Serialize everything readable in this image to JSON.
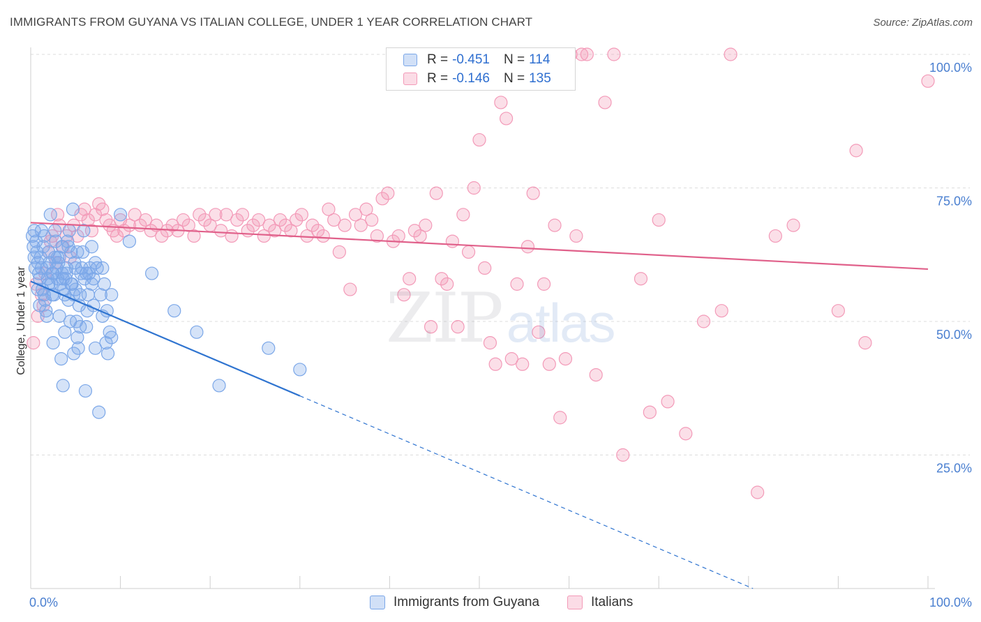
{
  "header": {
    "title": "IMMIGRANTS FROM GUYANA VS ITALIAN COLLEGE, UNDER 1 YEAR CORRELATION CHART",
    "source": "Source: ZipAtlas.com"
  },
  "watermark": {
    "zip": "ZIP",
    "atlas": "atlas"
  },
  "legend": {
    "rows": [
      {
        "r_label": "R =",
        "r_value": "-0.451",
        "n_label": "N =",
        "n_value": "114",
        "color": "#7ba7e8"
      },
      {
        "r_label": "R =",
        "r_value": "-0.146",
        "n_label": "N =",
        "n_value": "135",
        "color": "#f39ab8"
      }
    ]
  },
  "bottom_legend": {
    "items": [
      {
        "label": "Immigrants from Guyana",
        "color": "#7ba7e8"
      },
      {
        "label": "Italians",
        "color": "#f39ab8"
      }
    ]
  },
  "chart_data": {
    "type": "scatter",
    "title": "IMMIGRANTS FROM GUYANA VS ITALIAN COLLEGE, UNDER 1 YEAR CORRELATION CHART",
    "xlabel": "",
    "ylabel": "College, Under 1 year",
    "xlim": [
      0,
      100
    ],
    "ylim": [
      0,
      100
    ],
    "x_tick_labels": [
      "0.0%",
      "100.0%"
    ],
    "y_ticks": [
      {
        "value": 25,
        "label": "25.0%"
      },
      {
        "value": 50,
        "label": "50.0%"
      },
      {
        "value": 75,
        "label": "75.0%"
      },
      {
        "value": 100,
        "label": "100.0%"
      }
    ],
    "grid": true,
    "legend_position": "top-center",
    "series": [
      {
        "name": "Immigrants from Guyana",
        "color": "#7ba7e8",
        "line_color": "#2f74d0",
        "R": -0.451,
        "N": 114,
        "trend": {
          "x0": 0,
          "y0": 57.5,
          "x_solid_end": 30,
          "x1": 80.5,
          "y1": 0
        },
        "points": [
          [
            0.2,
            66
          ],
          [
            0.3,
            64
          ],
          [
            0.4,
            62
          ],
          [
            0.5,
            60
          ],
          [
            0.6,
            65
          ],
          [
            0.7,
            63
          ],
          [
            0.8,
            61
          ],
          [
            0.9,
            59
          ],
          [
            1.0,
            58
          ],
          [
            1.1,
            62
          ],
          [
            1.2,
            60
          ],
          [
            1.3,
            56
          ],
          [
            1.4,
            64
          ],
          [
            1.5,
            66
          ],
          [
            1.6,
            54
          ],
          [
            1.7,
            52
          ],
          [
            1.8,
            60
          ],
          [
            1.9,
            58
          ],
          [
            2.0,
            63
          ],
          [
            2.1,
            61
          ],
          [
            2.2,
            70
          ],
          [
            2.3,
            57
          ],
          [
            2.4,
            59
          ],
          [
            2.5,
            46
          ],
          [
            2.6,
            55
          ],
          [
            2.7,
            62
          ],
          [
            2.8,
            65
          ],
          [
            2.9,
            60
          ],
          [
            3.0,
            58
          ],
          [
            3.1,
            61
          ],
          [
            3.2,
            51
          ],
          [
            3.3,
            57
          ],
          [
            3.4,
            43
          ],
          [
            3.5,
            59
          ],
          [
            3.6,
            38
          ],
          [
            3.7,
            56
          ],
          [
            3.8,
            55
          ],
          [
            3.9,
            58
          ],
          [
            4.0,
            60
          ],
          [
            4.1,
            65
          ],
          [
            4.2,
            54
          ],
          [
            4.3,
            67
          ],
          [
            4.4,
            50
          ],
          [
            4.5,
            63
          ],
          [
            4.6,
            57
          ],
          [
            4.7,
            71
          ],
          [
            4.8,
            55
          ],
          [
            4.9,
            61
          ],
          [
            5.0,
            56
          ],
          [
            5.1,
            50
          ],
          [
            5.2,
            47
          ],
          [
            5.3,
            45
          ],
          [
            5.4,
            53
          ],
          [
            5.5,
            49
          ],
          [
            5.6,
            59
          ],
          [
            5.7,
            60
          ],
          [
            5.8,
            63
          ],
          [
            5.9,
            67
          ],
          [
            6.0,
            58
          ],
          [
            6.1,
            37
          ],
          [
            6.2,
            59
          ],
          [
            6.3,
            52
          ],
          [
            6.4,
            55
          ],
          [
            6.6,
            60
          ],
          [
            6.8,
            57
          ],
          [
            7.0,
            53
          ],
          [
            7.2,
            61
          ],
          [
            7.4,
            60
          ],
          [
            7.6,
            33
          ],
          [
            7.8,
            55
          ],
          [
            8.0,
            51
          ],
          [
            8.2,
            57
          ],
          [
            8.4,
            46
          ],
          [
            8.6,
            44
          ],
          [
            8.8,
            48
          ],
          [
            9.0,
            55
          ],
          [
            10.0,
            70
          ],
          [
            11.0,
            65
          ],
          [
            13.5,
            59
          ],
          [
            16,
            52
          ],
          [
            18.5,
            48
          ],
          [
            21,
            38
          ],
          [
            26.5,
            45
          ],
          [
            30,
            41
          ],
          [
            0.8,
            56
          ],
          [
            1.0,
            53
          ],
          [
            1.5,
            55
          ],
          [
            2.0,
            57
          ],
          [
            2.5,
            59
          ],
          [
            3.0,
            62
          ],
          [
            3.5,
            64
          ],
          [
            4.0,
            59
          ],
          [
            4.5,
            57
          ],
          [
            5.0,
            60
          ],
          [
            6.5,
            59
          ],
          [
            7.0,
            58
          ],
          [
            8.0,
            60
          ],
          [
            9.0,
            47
          ],
          [
            1.2,
            67
          ],
          [
            2.7,
            67
          ],
          [
            3.2,
            62
          ],
          [
            4.2,
            64
          ],
          [
            5.2,
            63
          ],
          [
            6.8,
            64
          ],
          [
            0.4,
            67
          ],
          [
            1.8,
            51
          ],
          [
            2.4,
            55
          ],
          [
            3.8,
            48
          ],
          [
            4.8,
            44
          ],
          [
            6.2,
            49
          ],
          [
            7.2,
            45
          ],
          [
            8.5,
            52
          ],
          [
            3.6,
            58
          ],
          [
            5.5,
            55
          ]
        ]
      },
      {
        "name": "Italians",
        "color": "#f39ab8",
        "line_color": "#e0608a",
        "R": -0.146,
        "N": 135,
        "trend": {
          "x0": 0,
          "y0": 68.5,
          "x1": 100,
          "y1": 59.8
        },
        "points": [
          [
            0.3,
            46
          ],
          [
            0.8,
            51
          ],
          [
            1.2,
            55
          ],
          [
            1.6,
            59
          ],
          [
            2.0,
            63
          ],
          [
            2.4,
            66
          ],
          [
            2.8,
            61
          ],
          [
            3.2,
            68
          ],
          [
            3.6,
            64
          ],
          [
            4.0,
            66
          ],
          [
            4.4,
            62
          ],
          [
            4.8,
            68
          ],
          [
            5.2,
            66
          ],
          [
            5.6,
            70
          ],
          [
            6.0,
            71
          ],
          [
            6.4,
            69
          ],
          [
            6.8,
            67
          ],
          [
            7.2,
            70
          ],
          [
            7.6,
            72
          ],
          [
            8.0,
            71
          ],
          [
            8.4,
            69
          ],
          [
            8.8,
            68
          ],
          [
            9.2,
            67
          ],
          [
            9.6,
            66
          ],
          [
            10.0,
            69
          ],
          [
            10.4,
            67
          ],
          [
            11.0,
            68
          ],
          [
            11.6,
            70
          ],
          [
            12.2,
            68
          ],
          [
            12.8,
            69
          ],
          [
            13.4,
            67
          ],
          [
            14.0,
            68
          ],
          [
            14.6,
            66
          ],
          [
            15.2,
            67
          ],
          [
            15.8,
            68
          ],
          [
            16.4,
            67
          ],
          [
            17.0,
            69
          ],
          [
            17.6,
            68
          ],
          [
            18.2,
            66
          ],
          [
            18.8,
            70
          ],
          [
            19.4,
            69
          ],
          [
            20.0,
            68
          ],
          [
            20.6,
            70
          ],
          [
            21.2,
            67
          ],
          [
            21.8,
            70
          ],
          [
            22.4,
            66
          ],
          [
            23.0,
            69
          ],
          [
            23.6,
            70
          ],
          [
            24.2,
            67
          ],
          [
            24.8,
            68
          ],
          [
            25.4,
            69
          ],
          [
            26.0,
            66
          ],
          [
            26.6,
            68
          ],
          [
            27.2,
            67
          ],
          [
            27.8,
            69
          ],
          [
            28.4,
            68
          ],
          [
            29.0,
            67
          ],
          [
            29.6,
            69
          ],
          [
            30.2,
            70
          ],
          [
            30.8,
            66
          ],
          [
            31.4,
            68
          ],
          [
            32.0,
            67
          ],
          [
            32.6,
            66
          ],
          [
            33.2,
            71
          ],
          [
            33.8,
            69
          ],
          [
            34.4,
            63
          ],
          [
            35.0,
            68
          ],
          [
            35.6,
            56
          ],
          [
            36.2,
            70
          ],
          [
            36.8,
            68
          ],
          [
            37.4,
            71
          ],
          [
            38.0,
            69
          ],
          [
            38.6,
            66
          ],
          [
            39.2,
            73
          ],
          [
            39.8,
            74
          ],
          [
            40.4,
            65
          ],
          [
            41.0,
            66
          ],
          [
            41.6,
            55
          ],
          [
            42.2,
            58
          ],
          [
            42.8,
            67
          ],
          [
            43.4,
            66
          ],
          [
            44.0,
            68
          ],
          [
            44.6,
            49
          ],
          [
            45.2,
            74
          ],
          [
            45.8,
            58
          ],
          [
            46.4,
            57
          ],
          [
            47.0,
            65
          ],
          [
            47.6,
            49
          ],
          [
            48.2,
            70
          ],
          [
            48.8,
            63
          ],
          [
            49.4,
            75
          ],
          [
            50.0,
            84
          ],
          [
            50.6,
            60
          ],
          [
            51.2,
            46
          ],
          [
            51.8,
            42
          ],
          [
            52.4,
            91
          ],
          [
            53.0,
            88
          ],
          [
            53.6,
            43
          ],
          [
            54.2,
            57
          ],
          [
            54.8,
            42
          ],
          [
            55.4,
            64
          ],
          [
            56.0,
            74
          ],
          [
            56.6,
            48
          ],
          [
            57.2,
            57
          ],
          [
            57.8,
            42
          ],
          [
            58.4,
            68
          ],
          [
            59.0,
            32
          ],
          [
            59.6,
            43
          ],
          [
            60.2,
            100
          ],
          [
            60.8,
            66
          ],
          [
            61.4,
            100
          ],
          [
            62.0,
            100
          ],
          [
            63.0,
            40
          ],
          [
            64.0,
            91
          ],
          [
            65.0,
            100
          ],
          [
            66.0,
            25
          ],
          [
            68.0,
            58
          ],
          [
            69.0,
            33
          ],
          [
            70.0,
            69
          ],
          [
            71.0,
            35
          ],
          [
            73.0,
            29
          ],
          [
            75.0,
            50
          ],
          [
            77.0,
            52
          ],
          [
            78.0,
            100
          ],
          [
            81.0,
            18
          ],
          [
            83.0,
            66
          ],
          [
            85.0,
            68
          ],
          [
            90.0,
            52
          ],
          [
            92.0,
            82
          ],
          [
            93.0,
            46
          ],
          [
            100.0,
            95
          ],
          [
            0.6,
            57
          ],
          [
            1.4,
            53
          ],
          [
            2.2,
            65
          ],
          [
            3.0,
            70
          ]
        ]
      }
    ]
  }
}
